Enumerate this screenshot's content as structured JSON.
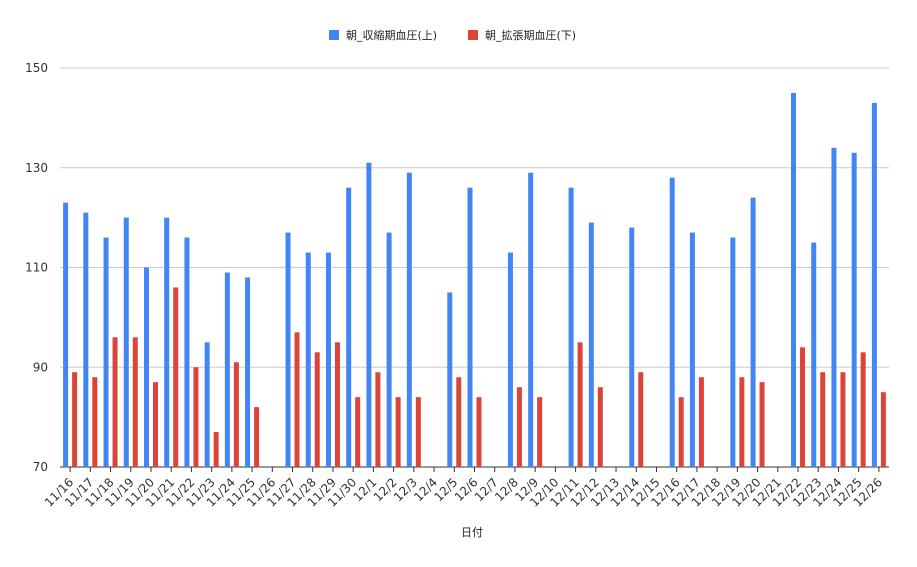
{
  "chart_data": {
    "type": "bar",
    "xlabel": "日付",
    "ylabel": "",
    "ylim": [
      70,
      150
    ],
    "yticks": [
      70,
      90,
      110,
      130,
      150
    ],
    "grid": true,
    "legend_position": "top",
    "categories": [
      "11/16",
      "11/17",
      "11/18",
      "11/19",
      "11/20",
      "11/21",
      "11/22",
      "11/23",
      "11/24",
      "11/25",
      "11/26",
      "11/27",
      "11/28",
      "11/29",
      "11/30",
      "12/1",
      "12/2",
      "12/3",
      "12/4",
      "12/5",
      "12/6",
      "12/7",
      "12/8",
      "12/9",
      "12/10",
      "12/11",
      "12/12",
      "12/13",
      "12/14",
      "12/15",
      "12/16",
      "12/17",
      "12/18",
      "12/19",
      "12/20",
      "12/21",
      "12/22",
      "12/23",
      "12/24",
      "12/25",
      "12/26"
    ],
    "series": [
      {
        "name": "朝_収縮期血圧(上)",
        "color": "#4285f4",
        "values": [
          123,
          121,
          116,
          120,
          110,
          120,
          116,
          95,
          109,
          108,
          null,
          117,
          113,
          113,
          126,
          131,
          117,
          129,
          null,
          105,
          126,
          null,
          113,
          129,
          null,
          126,
          119,
          null,
          118,
          null,
          128,
          117,
          null,
          116,
          124,
          null,
          145,
          115,
          134,
          133,
          143
        ]
      },
      {
        "name": "朝_拡張期血圧(下)",
        "color": "#db4437",
        "values": [
          89,
          88,
          96,
          96,
          87,
          106,
          90,
          77,
          91,
          82,
          null,
          97,
          93,
          95,
          84,
          89,
          84,
          84,
          null,
          88,
          84,
          null,
          86,
          84,
          null,
          95,
          86,
          null,
          89,
          null,
          84,
          88,
          null,
          88,
          87,
          null,
          94,
          89,
          89,
          93,
          85
        ]
      }
    ]
  }
}
